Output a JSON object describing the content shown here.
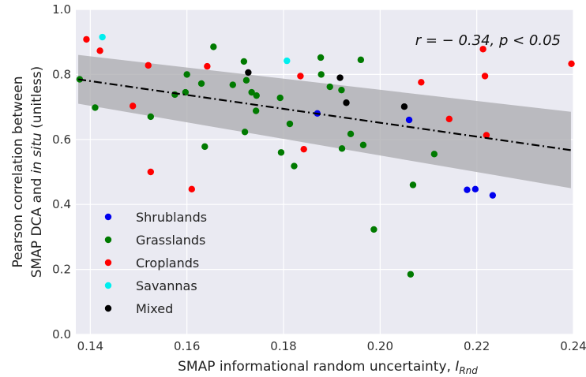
{
  "chart_data": {
    "type": "scatter",
    "title": "",
    "xlabel": "SMAP informational random uncertainty, ",
    "xlabel_var": "I",
    "xlabel_sub": "Rnd",
    "ylabel_line1": "Pearson correlation between",
    "ylabel_line2_a": "SMAP DCA and ",
    "ylabel_line2_b": "in situ",
    "ylabel_line2_c": " (unitless)",
    "xlim": [
      0.137,
      0.24
    ],
    "ylim": [
      0.0,
      1.0
    ],
    "xticks": [
      "0.14",
      "0.16",
      "0.18",
      "0.20",
      "0.22",
      "0.24"
    ],
    "xtick_values": [
      0.14,
      0.16,
      0.18,
      0.2,
      0.22,
      0.24
    ],
    "yticks": [
      "0.0",
      "0.2",
      "0.4",
      "0.6",
      "0.8",
      "1.0"
    ],
    "ytick_values": [
      0.0,
      0.2,
      0.4,
      0.6,
      0.8,
      1.0
    ],
    "grid": true,
    "background": "#eaeaf2",
    "legend_placement": "lower-left",
    "annotation": "r = − 0.34,  p < 0.05",
    "regression": {
      "x": [
        0.1375,
        0.2395
      ],
      "y": [
        0.785,
        0.567
      ],
      "ci_upper": [
        0.86,
        0.685
      ],
      "ci_lower": [
        0.71,
        0.45
      ],
      "color": "#000000",
      "band_color": "#a9a9ae"
    },
    "series": [
      {
        "name": "Shrublands",
        "color": "#0000ee",
        "points": [
          [
            0.187,
            0.68
          ],
          [
            0.206,
            0.66
          ],
          [
            0.218,
            0.445
          ],
          [
            0.2197,
            0.447
          ],
          [
            0.2233,
            0.428
          ]
        ]
      },
      {
        "name": "Grasslands",
        "color": "#007a00",
        "points": [
          [
            0.1378,
            0.785
          ],
          [
            0.141,
            0.698
          ],
          [
            0.1525,
            0.67
          ],
          [
            0.1575,
            0.738
          ],
          [
            0.1597,
            0.745
          ],
          [
            0.16,
            0.8
          ],
          [
            0.163,
            0.772
          ],
          [
            0.1637,
            0.578
          ],
          [
            0.1655,
            0.885
          ],
          [
            0.1695,
            0.768
          ],
          [
            0.1718,
            0.84
          ],
          [
            0.172,
            0.623
          ],
          [
            0.1723,
            0.782
          ],
          [
            0.1734,
            0.745
          ],
          [
            0.1743,
            0.688
          ],
          [
            0.1744,
            0.735
          ],
          [
            0.1793,
            0.728
          ],
          [
            0.1795,
            0.56
          ],
          [
            0.1813,
            0.648
          ],
          [
            0.1822,
            0.518
          ],
          [
            0.1877,
            0.852
          ],
          [
            0.1878,
            0.8
          ],
          [
            0.1896,
            0.762
          ],
          [
            0.192,
            0.752
          ],
          [
            0.1921,
            0.572
          ],
          [
            0.1939,
            0.617
          ],
          [
            0.196,
            0.845
          ],
          [
            0.1965,
            0.583
          ],
          [
            0.1987,
            0.323
          ],
          [
            0.2063,
            0.185
          ],
          [
            0.2068,
            0.46
          ],
          [
            0.2112,
            0.555
          ]
        ]
      },
      {
        "name": "Croplands",
        "color": "#ff0000",
        "points": [
          [
            0.1392,
            0.908
          ],
          [
            0.142,
            0.873
          ],
          [
            0.1488,
            0.703
          ],
          [
            0.152,
            0.828
          ],
          [
            0.1525,
            0.5
          ],
          [
            0.161,
            0.447
          ],
          [
            0.1642,
            0.825
          ],
          [
            0.1835,
            0.795
          ],
          [
            0.1842,
            0.57
          ],
          [
            0.2085,
            0.776
          ],
          [
            0.2143,
            0.663
          ],
          [
            0.2213,
            0.878
          ],
          [
            0.2217,
            0.795
          ],
          [
            0.222,
            0.613
          ],
          [
            0.2396,
            0.833
          ]
        ]
      },
      {
        "name": "Savannas",
        "color": "#00eeee",
        "points": [
          [
            0.1425,
            0.915
          ],
          [
            0.1807,
            0.842
          ]
        ]
      },
      {
        "name": "Mixed",
        "color": "#000000",
        "points": [
          [
            0.1727,
            0.806
          ],
          [
            0.1917,
            0.79
          ],
          [
            0.193,
            0.713
          ],
          [
            0.205,
            0.701
          ]
        ]
      }
    ]
  }
}
